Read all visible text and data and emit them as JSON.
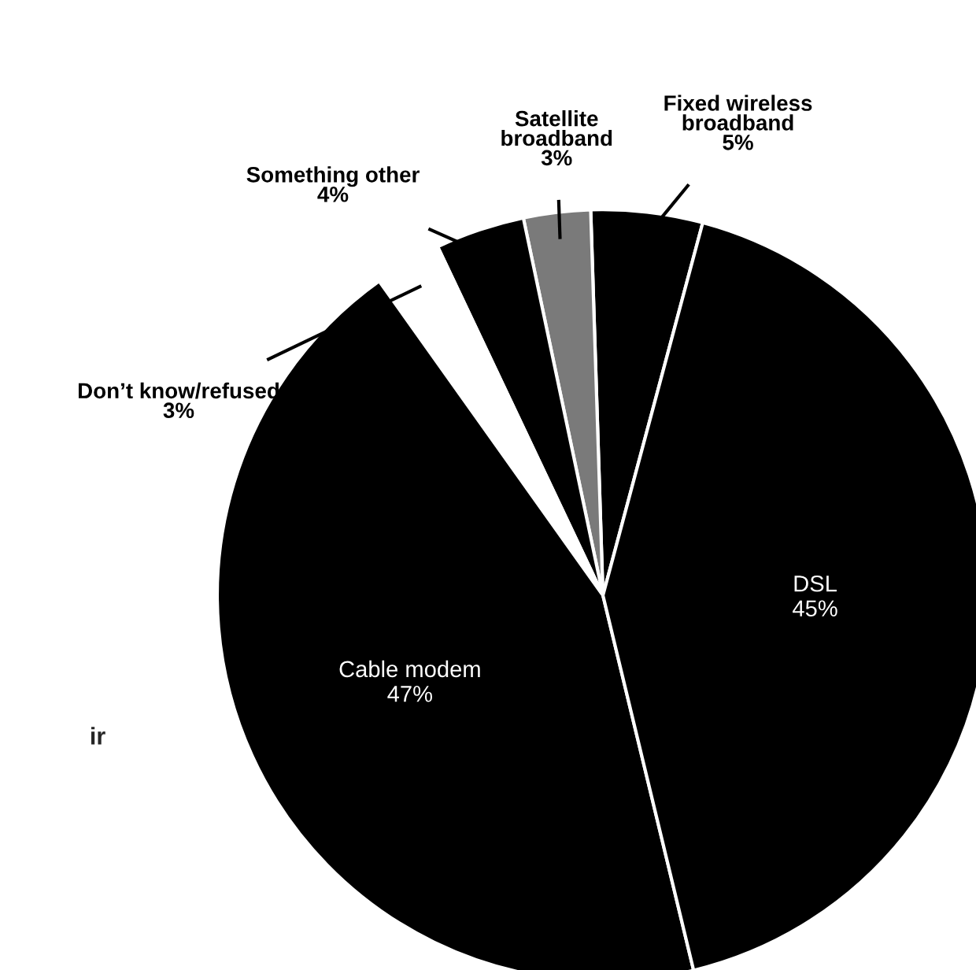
{
  "chart_data": {
    "type": "pie",
    "categories": [
      "Fixed wireless\nbroadband",
      "Satellite\nbroadband",
      "Something other",
      "Don’t know/refused",
      "Cable modem",
      "DSL"
    ],
    "values": [
      5,
      3,
      4,
      3,
      47,
      45
    ],
    "value_labels": [
      "5%",
      "3%",
      "4%",
      "3%",
      "47%",
      "45%"
    ],
    "colors": [
      "#000000",
      "#7a7a7a",
      "#000000",
      "#ffffff",
      "#000000",
      "#000000"
    ],
    "annotations": [
      "ir"
    ]
  }
}
